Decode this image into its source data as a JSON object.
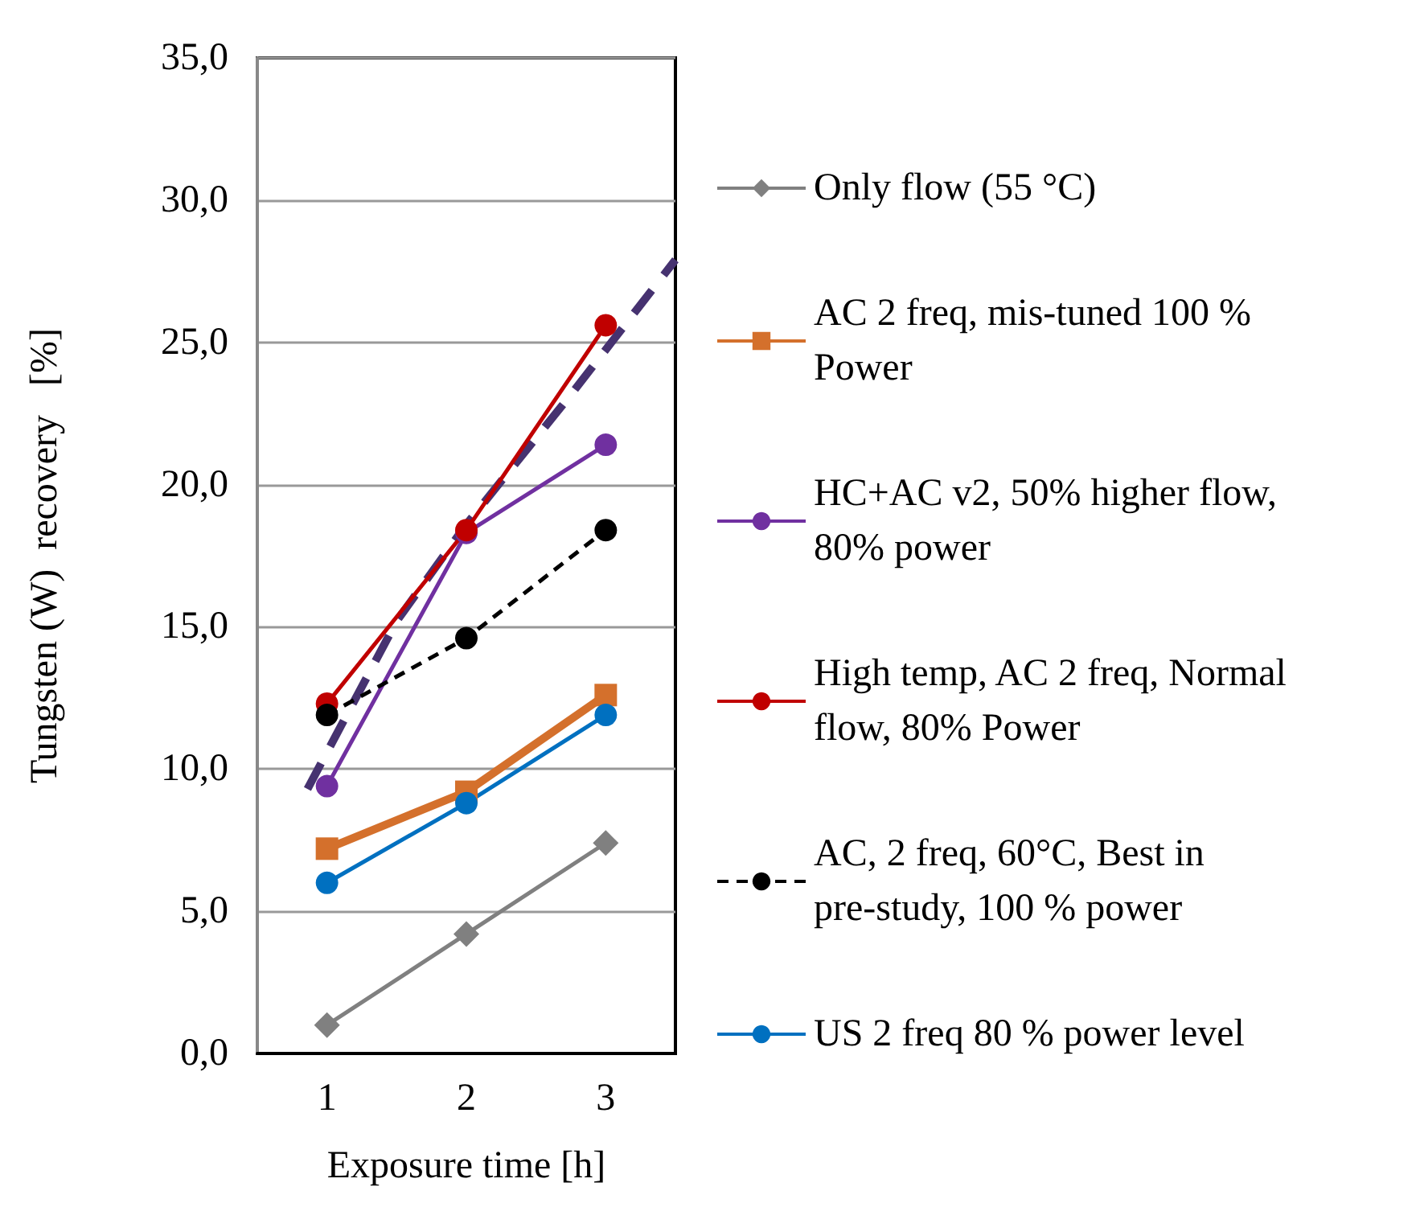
{
  "chart_data": {
    "type": "line",
    "xlabel": "Exposure time [h]",
    "ylabel": "Tungsten (W)  recovery   [%]",
    "xlim": [
      0.5,
      3.5
    ],
    "xticks": [
      1,
      2,
      3
    ],
    "ylim": [
      0,
      35
    ],
    "yticks": [
      {
        "value": 0,
        "label": "0,0"
      },
      {
        "value": 5,
        "label": "5,0"
      },
      {
        "value": 10,
        "label": "10,0"
      },
      {
        "value": 15,
        "label": "15,0"
      },
      {
        "value": 20,
        "label": "20,0"
      },
      {
        "value": 25,
        "label": "25,0"
      },
      {
        "value": 30,
        "label": "30,0"
      },
      {
        "value": 35,
        "label": "35,0"
      }
    ],
    "grid": "y",
    "legend": "right",
    "series": [
      {
        "name": "Only flow (55 °C)",
        "color": "#808080",
        "marker": "diamond",
        "line_style": "solid",
        "x": [
          1,
          2,
          3
        ],
        "values": [
          1.0,
          4.2,
          7.4
        ]
      },
      {
        "name": "AC 2 freq, mis-tuned 100 % Power",
        "color": "#d4702c",
        "marker": "square",
        "line_style": "solid",
        "x": [
          1,
          2,
          3
        ],
        "values": [
          7.2,
          9.2,
          12.6
        ]
      },
      {
        "name": "HC+AC v2, 50% higher flow, 80% power",
        "color": "#7030a0",
        "marker": "circle",
        "line_style": "solid",
        "x": [
          1,
          2,
          3
        ],
        "values": [
          9.4,
          18.3,
          21.4
        ]
      },
      {
        "name": "High temp, AC 2 freq, Normal flow, 80% Power",
        "color": "#c00000",
        "marker": "circle",
        "line_style": "solid",
        "x": [
          1,
          2,
          3
        ],
        "values": [
          12.3,
          18.4,
          25.6
        ]
      },
      {
        "name": "AC, 2 freq, 60°C, Best in pre-study, 100 % power",
        "color": "#000000",
        "marker": "circle",
        "line_style": "dashed",
        "x": [
          1,
          2,
          3
        ],
        "values": [
          11.9,
          14.6,
          18.4
        ]
      },
      {
        "name": "US 2 freq 80 % power level",
        "color": "#0070c0",
        "marker": "circle",
        "line_style": "solid",
        "x": [
          1,
          2,
          3
        ],
        "values": [
          6.0,
          8.8,
          11.9
        ]
      },
      {
        "color": "#463270",
        "marker": "none",
        "line_style": "dashed",
        "x": [
          0.86,
          1.5,
          2,
          2.74,
          3.5
        ],
        "values": [
          9.3,
          15.2,
          18.6,
          23.1,
          27.9
        ]
      }
    ]
  }
}
